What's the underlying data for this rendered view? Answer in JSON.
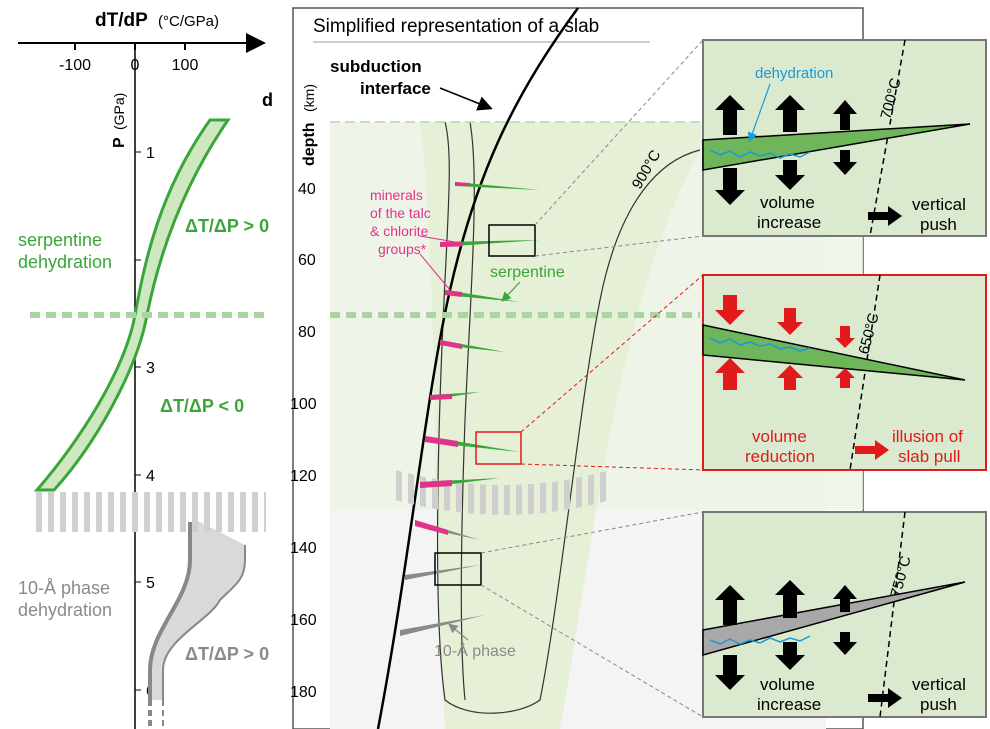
{
  "left_panel": {
    "axis_title_main": "dT/dP",
    "axis_title_unit": "(°C/GPa)",
    "x_ticks": [
      "-100",
      "0",
      "100"
    ],
    "p_axis_label": "P",
    "p_axis_unit": "(GPa)",
    "p_ticks": [
      "1",
      "2",
      "3",
      "4",
      "5",
      "6"
    ],
    "serpentine_label": [
      "serpentine",
      "dehydration"
    ],
    "phase_label": [
      "10-Å phase",
      "dehydration"
    ],
    "ratio_positive_upper": "ΔT/ΔP > 0",
    "ratio_negative": "ΔT/ΔP < 0",
    "ratio_positive_lower": "ΔT/ΔP > 0",
    "panel_letter": "d"
  },
  "middle_panel": {
    "title": "Simplified representation of a slab",
    "depth_label": "depth",
    "depth_unit": "(km)",
    "depth_ticks": [
      "40",
      "60",
      "80",
      "100",
      "120",
      "140",
      "160",
      "180"
    ],
    "subduction_label": [
      "subduction",
      "interface"
    ],
    "minerals_label": [
      "minerals",
      "of the talc",
      "& chlorite",
      "groups*"
    ],
    "serpentine_label": "serpentine",
    "isotherm_label": "900°C",
    "phase_label": "10-Å phase"
  },
  "insets": [
    {
      "isotherm": "700°C",
      "top_label": "dehydration",
      "left_label": [
        "volume",
        "increase"
      ],
      "right_label": [
        "vertical",
        "push"
      ]
    },
    {
      "isotherm": "650°C",
      "left_label": [
        "volume",
        "reduction"
      ],
      "right_label": [
        "illusion of",
        "slab pull"
      ]
    },
    {
      "isotherm": "750°C",
      "left_label": [
        "volume",
        "increase"
      ],
      "right_label": [
        "vertical",
        "push"
      ]
    }
  ],
  "colors": {
    "serpentine_green": "#3aa63a",
    "light_green_fill": "#e8f2dc",
    "phase_gray": "#8a8a8a",
    "talc_pink": "#e0338a",
    "dehydration_blue": "#1a9ad6",
    "reduction_red": "#e11b1b"
  }
}
